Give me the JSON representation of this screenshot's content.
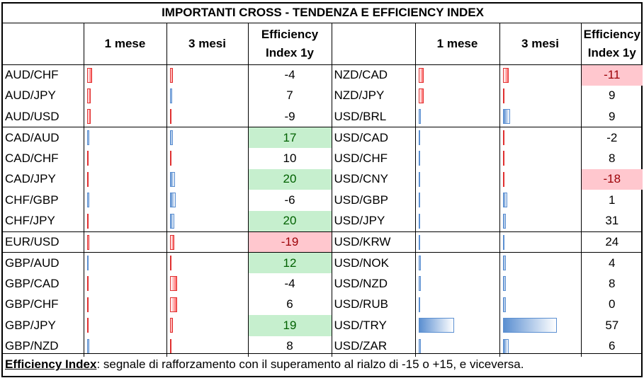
{
  "title": "IMPORTANTI CROSS - TENDENZA E EFFICIENCY INDEX",
  "headers": {
    "col_1m": "1 mese",
    "col_3m": "3 mesi",
    "col_eff_line1": "Efficiency",
    "col_eff_line2": "Index 1y"
  },
  "colors": {
    "negative_bar": "#ff6b6b",
    "positive_bar": "#5b8fd1",
    "green_fill": "#c6efce",
    "green_text": "#006100",
    "red_fill": "#ffc7ce",
    "red_text": "#9c0006"
  },
  "left_rows": [
    {
      "pair": "AUD/CHF",
      "m1": -0.08,
      "m3": -0.05,
      "eff": "-4",
      "hl": ""
    },
    {
      "pair": "AUD/JPY",
      "m1": -0.06,
      "m3": 0.04,
      "eff": "7",
      "hl": ""
    },
    {
      "pair": "AUD/USD",
      "m1": -0.06,
      "m3": -0.03,
      "eff": "-9",
      "hl": ""
    },
    {
      "pair": "CAD/AUD",
      "m1": 0.04,
      "m3": 0.05,
      "eff": "17",
      "hl": "green"
    },
    {
      "pair": "CAD/CHF",
      "m1": -0.02,
      "m3": -0.01,
      "eff": "10",
      "hl": ""
    },
    {
      "pair": "CAD/JPY",
      "m1": -0.02,
      "m3": 0.09,
      "eff": "20",
      "hl": "green"
    },
    {
      "pair": "CHF/GBP",
      "m1": 0.04,
      "m3": 0.1,
      "eff": "-6",
      "hl": ""
    },
    {
      "pair": "CHF/JPY",
      "m1": -0.02,
      "m3": 0.08,
      "eff": "20",
      "hl": "green"
    },
    {
      "pair": "EUR/USD",
      "m1": -0.04,
      "m3": -0.08,
      "eff": "-19",
      "hl": "red"
    },
    {
      "pair": "GBP/AUD",
      "m1": 0.02,
      "m3": -0.03,
      "eff": "12",
      "hl": "green"
    },
    {
      "pair": "GBP/CAD",
      "m1": -0.02,
      "m3": -0.12,
      "eff": "-4",
      "hl": ""
    },
    {
      "pair": "GBP/CHF",
      "m1": -0.03,
      "m3": -0.12,
      "eff": "6",
      "hl": ""
    },
    {
      "pair": "GBP/JPY",
      "m1": -0.03,
      "m3": -0.05,
      "eff": "19",
      "hl": "green"
    },
    {
      "pair": "GBP/NZD",
      "m1": 0.04,
      "m3": -0.02,
      "eff": "8",
      "hl": ""
    }
  ],
  "right_rows": [
    {
      "pair": "NZD/CAD",
      "m1": -0.08,
      "m3": -0.1,
      "eff": "-11",
      "hl": "red"
    },
    {
      "pair": "NZD/JPY",
      "m1": -0.08,
      "m3": -0.02,
      "eff": "9",
      "hl": ""
    },
    {
      "pair": "USD/BRL",
      "m1": 0.04,
      "m3": 0.12,
      "eff": "9",
      "hl": ""
    },
    {
      "pair": "USD/CAD",
      "m1": 0.01,
      "m3": -0.03,
      "eff": "-2",
      "hl": ""
    },
    {
      "pair": "USD/CHF",
      "m1": 0.01,
      "m3": -0.03,
      "eff": "8",
      "hl": ""
    },
    {
      "pair": "USD/CNY",
      "m1": 0.01,
      "m3": -0.03,
      "eff": "-18",
      "hl": "red"
    },
    {
      "pair": "USD/GBP",
      "m1": 0.01,
      "m3": 0.08,
      "eff": "1",
      "hl": ""
    },
    {
      "pair": "USD/JPY",
      "m1": 0.01,
      "m3": 0.05,
      "eff": "31",
      "hl": ""
    },
    {
      "pair": "USD/KRW",
      "m1": 0.01,
      "m3": 0.01,
      "eff": "24",
      "hl": ""
    },
    {
      "pair": "USD/NOK",
      "m1": 0.04,
      "m3": 0.05,
      "eff": "4",
      "hl": ""
    },
    {
      "pair": "USD/NZD",
      "m1": 0.04,
      "m3": 0.05,
      "eff": "8",
      "hl": ""
    },
    {
      "pair": "USD/RUB",
      "m1": 0.03,
      "m3": 0.05,
      "eff": "0",
      "hl": ""
    },
    {
      "pair": "USD/TRY",
      "m1": 0.6,
      "m3": 0.95,
      "eff": "57",
      "hl": ""
    },
    {
      "pair": "USD/ZAR",
      "m1": 0.04,
      "m3": 0.1,
      "eff": "6",
      "hl": ""
    }
  ],
  "footer": {
    "label": "Efficiency Index",
    "text": ": segnale di rafforzamento con il superamento al rialzo di -15 o +15, e viceversa."
  }
}
